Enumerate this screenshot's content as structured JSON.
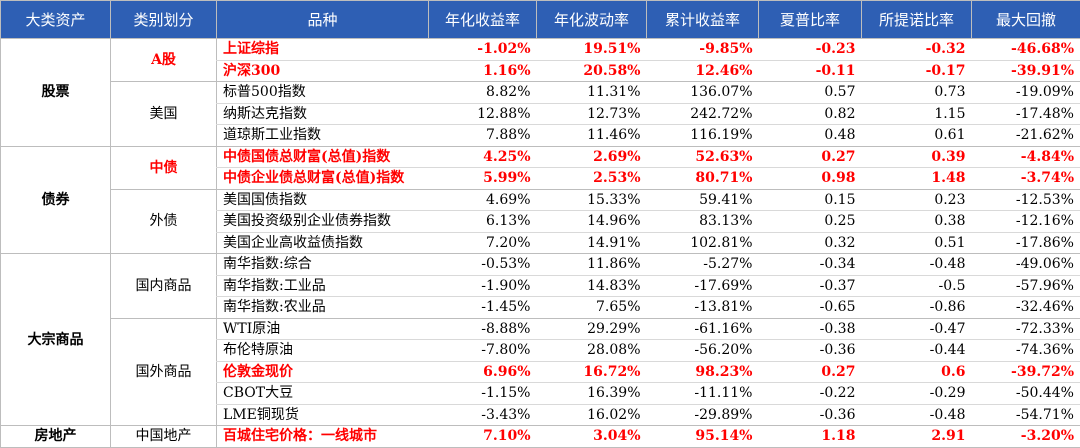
{
  "headers": [
    "大类资产",
    "类别划分",
    "品种",
    "年化收益率",
    "年化波动率",
    "累计收益率",
    "夏普比率",
    "所提诺比率",
    "最大回撤"
  ],
  "categories": [
    "股票",
    "债券",
    "大宗商品",
    "房地产"
  ],
  "groups": [
    "A股",
    "美国",
    "中债",
    "外债",
    "国内商品",
    "国外商品",
    "中国地产"
  ],
  "rows": [
    {
      "name": "上证综指",
      "v": [
        "-1.02%",
        "19.51%",
        "-9.85%",
        "-0.23",
        "-0.32",
        "-46.68%"
      ]
    },
    {
      "name": "沪深300",
      "v": [
        "1.16%",
        "20.58%",
        "12.46%",
        "-0.11",
        "-0.17",
        "-39.91%"
      ]
    },
    {
      "name": "标普500指数",
      "v": [
        "8.82%",
        "11.31%",
        "136.07%",
        "0.57",
        "0.73",
        "-19.09%"
      ]
    },
    {
      "name": "纳斯达克指数",
      "v": [
        "12.88%",
        "12.73%",
        "242.72%",
        "0.82",
        "1.15",
        "-17.48%"
      ]
    },
    {
      "name": "道琼斯工业指数",
      "v": [
        "7.88%",
        "11.46%",
        "116.19%",
        "0.48",
        "0.61",
        "-21.62%"
      ]
    },
    {
      "name": "中债国债总财富(总值)指数",
      "v": [
        "4.25%",
        "2.69%",
        "52.63%",
        "0.27",
        "0.39",
        "-4.84%"
      ]
    },
    {
      "name": "中债企业债总财富(总值)指数",
      "v": [
        "5.99%",
        "2.53%",
        "80.71%",
        "0.98",
        "1.48",
        "-3.74%"
      ]
    },
    {
      "name": "美国国债指数",
      "v": [
        "4.69%",
        "15.33%",
        "59.41%",
        "0.15",
        "0.23",
        "-12.53%"
      ]
    },
    {
      "name": "美国投资级别企业债券指数",
      "v": [
        "6.13%",
        "14.96%",
        "83.13%",
        "0.25",
        "0.38",
        "-12.16%"
      ]
    },
    {
      "name": "美国企业高收益债指数",
      "v": [
        "7.20%",
        "14.91%",
        "102.81%",
        "0.32",
        "0.51",
        "-17.86%"
      ]
    },
    {
      "name": "南华指数:综合",
      "v": [
        "-0.53%",
        "11.86%",
        "-5.27%",
        "-0.34",
        "-0.48",
        "-49.06%"
      ]
    },
    {
      "name": "南华指数:工业品",
      "v": [
        "-1.90%",
        "14.83%",
        "-17.69%",
        "-0.37",
        "-0.5",
        "-57.96%"
      ]
    },
    {
      "name": "南华指数:农业品",
      "v": [
        "-1.45%",
        "7.65%",
        "-13.81%",
        "-0.65",
        "-0.86",
        "-32.46%"
      ]
    },
    {
      "name": "WTI原油",
      "v": [
        "-8.88%",
        "29.29%",
        "-61.16%",
        "-0.38",
        "-0.47",
        "-72.33%"
      ]
    },
    {
      "name": "布伦特原油",
      "v": [
        "-7.80%",
        "28.08%",
        "-56.20%",
        "-0.36",
        "-0.44",
        "-74.36%"
      ]
    },
    {
      "name": "伦敦金现价",
      "v": [
        "6.96%",
        "16.72%",
        "98.23%",
        "0.27",
        "0.6",
        "-39.72%"
      ]
    },
    {
      "name": "CBOT大豆",
      "v": [
        "-1.15%",
        "16.39%",
        "-11.11%",
        "-0.22",
        "-0.29",
        "-50.44%"
      ]
    },
    {
      "name": "LME铜现货",
      "v": [
        "-3.43%",
        "16.02%",
        "-29.89%",
        "-0.36",
        "-0.48",
        "-54.71%"
      ]
    },
    {
      "name": "百城住宅价格：一线城市",
      "v": [
        "7.10%",
        "3.04%",
        "95.14%",
        "1.18",
        "2.91",
        "-3.20%"
      ]
    }
  ],
  "highlight_color": "#ff0000",
  "header_bg": "#2e5fb4"
}
